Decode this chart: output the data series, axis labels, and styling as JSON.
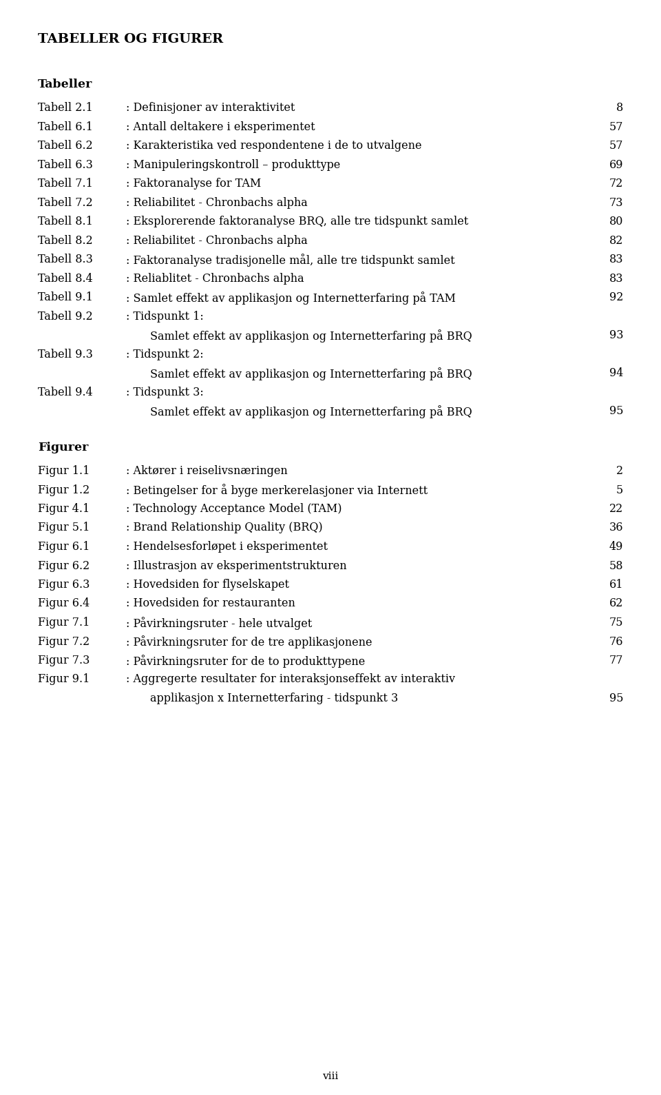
{
  "title": "TABELLER OG FIGURER",
  "bg_color": "#ffffff",
  "text_color": "#000000",
  "tabeller_heading": "Tabeller",
  "figurer_heading": "Figurer",
  "table_items": [
    {
      "label": "Tabell 2.1",
      "desc": ": Definisjoner av interaktivitet",
      "page": "8",
      "cont": null
    },
    {
      "label": "Tabell 6.1",
      "desc": ": Antall deltakere i eksperimentet",
      "page": "57",
      "cont": null
    },
    {
      "label": "Tabell 6.2",
      "desc": ": Karakteristika ved respondentene i de to utvalgene",
      "page": "57",
      "cont": null
    },
    {
      "label": "Tabell 6.3",
      "desc": ": Manipuleringskontroll – produkttype",
      "page": "69",
      "cont": null
    },
    {
      "label": "Tabell 7.1",
      "desc": ": Faktoranalyse for TAM",
      "page": "72",
      "cont": null
    },
    {
      "label": "Tabell 7.2",
      "desc": ": Reliabilitet - Chronbachs alpha",
      "page": "73",
      "cont": null
    },
    {
      "label": "Tabell 8.1",
      "desc": ": Eksplorerende faktoranalyse BRQ, alle tre tidspunkt samlet",
      "page": "80",
      "cont": null
    },
    {
      "label": "Tabell 8.2",
      "desc": ": Reliabilitet - Chronbachs alpha",
      "page": "82",
      "cont": null
    },
    {
      "label": "Tabell 8.3",
      "desc": ": Faktoranalyse tradisjonelle mål, alle tre tidspunkt samlet",
      "page": "83",
      "cont": null
    },
    {
      "label": "Tabell 8.4",
      "desc": ": Reliablitet - Chronbachs alpha",
      "page": "83",
      "cont": null
    },
    {
      "label": "Tabell 9.1",
      "desc": ": Samlet effekt av applikasjon og Internetterfaring på TAM",
      "page": "92",
      "cont": null
    },
    {
      "label": "Tabell 9.2",
      "desc": ": Tidspunkt 1:",
      "page": null,
      "cont": {
        "text": "Samlet effekt av applikasjon og Internetterfaring på BRQ",
        "page": "93"
      }
    },
    {
      "label": "Tabell 9.3",
      "desc": ": Tidspunkt 2:",
      "page": null,
      "cont": {
        "text": "Samlet effekt av applikasjon og Internetterfaring på BRQ",
        "page": "94"
      }
    },
    {
      "label": "Tabell 9.4",
      "desc": ": Tidspunkt 3:",
      "page": null,
      "cont": {
        "text": "Samlet effekt av applikasjon og Internetterfaring på BRQ",
        "page": "95"
      }
    }
  ],
  "figur_items": [
    {
      "label": "Figur 1.1",
      "desc": ": Aktører i reiselivsnæringen",
      "page": "2",
      "cont": null
    },
    {
      "label": "Figur 1.2",
      "desc": ": Betingelser for å byge merkerelasjoner via Internett",
      "page": "5",
      "cont": null
    },
    {
      "label": "Figur 4.1",
      "desc": ": Technology Acceptance Model (TAM)",
      "page": "22",
      "cont": null
    },
    {
      "label": "Figur 5.1",
      "desc": ": Brand Relationship Quality (BRQ)",
      "page": "36",
      "cont": null
    },
    {
      "label": "Figur 6.1",
      "desc": ": Hendelsesforløpet i eksperimentet",
      "page": "49",
      "cont": null
    },
    {
      "label": "Figur 6.2",
      "desc": ": Illustrasjon av eksperimentstrukturen",
      "page": "58",
      "cont": null
    },
    {
      "label": "Figur 6.3",
      "desc": ": Hovedsiden for flyselskapet",
      "page": "61",
      "cont": null
    },
    {
      "label": "Figur 6.4",
      "desc": ": Hovedsiden for restauranten",
      "page": "62",
      "cont": null
    },
    {
      "label": "Figur 7.1",
      "desc": ": Påvirkningsruter - hele utvalget",
      "page": "75",
      "cont": null
    },
    {
      "label": "Figur 7.2",
      "desc": ": Påvirkningsruter for de tre applikasjonene",
      "page": "76",
      "cont": null
    },
    {
      "label": "Figur 7.3",
      "desc": ": Påvirkningsruter for de to produkttypene",
      "page": "77",
      "cont": null
    },
    {
      "label": "Figur 9.1",
      "desc": ": Aggregerte resultater for interaksjonseffekt av interaktiv",
      "page": null,
      "cont": {
        "text": "applikasjon x Internetterfaring - tidspunkt 3",
        "page": "95"
      }
    }
  ],
  "page_footer": "viii",
  "fs_title": 14,
  "fs_heading": 12.5,
  "fs_body": 11.5,
  "fs_footer": 11
}
